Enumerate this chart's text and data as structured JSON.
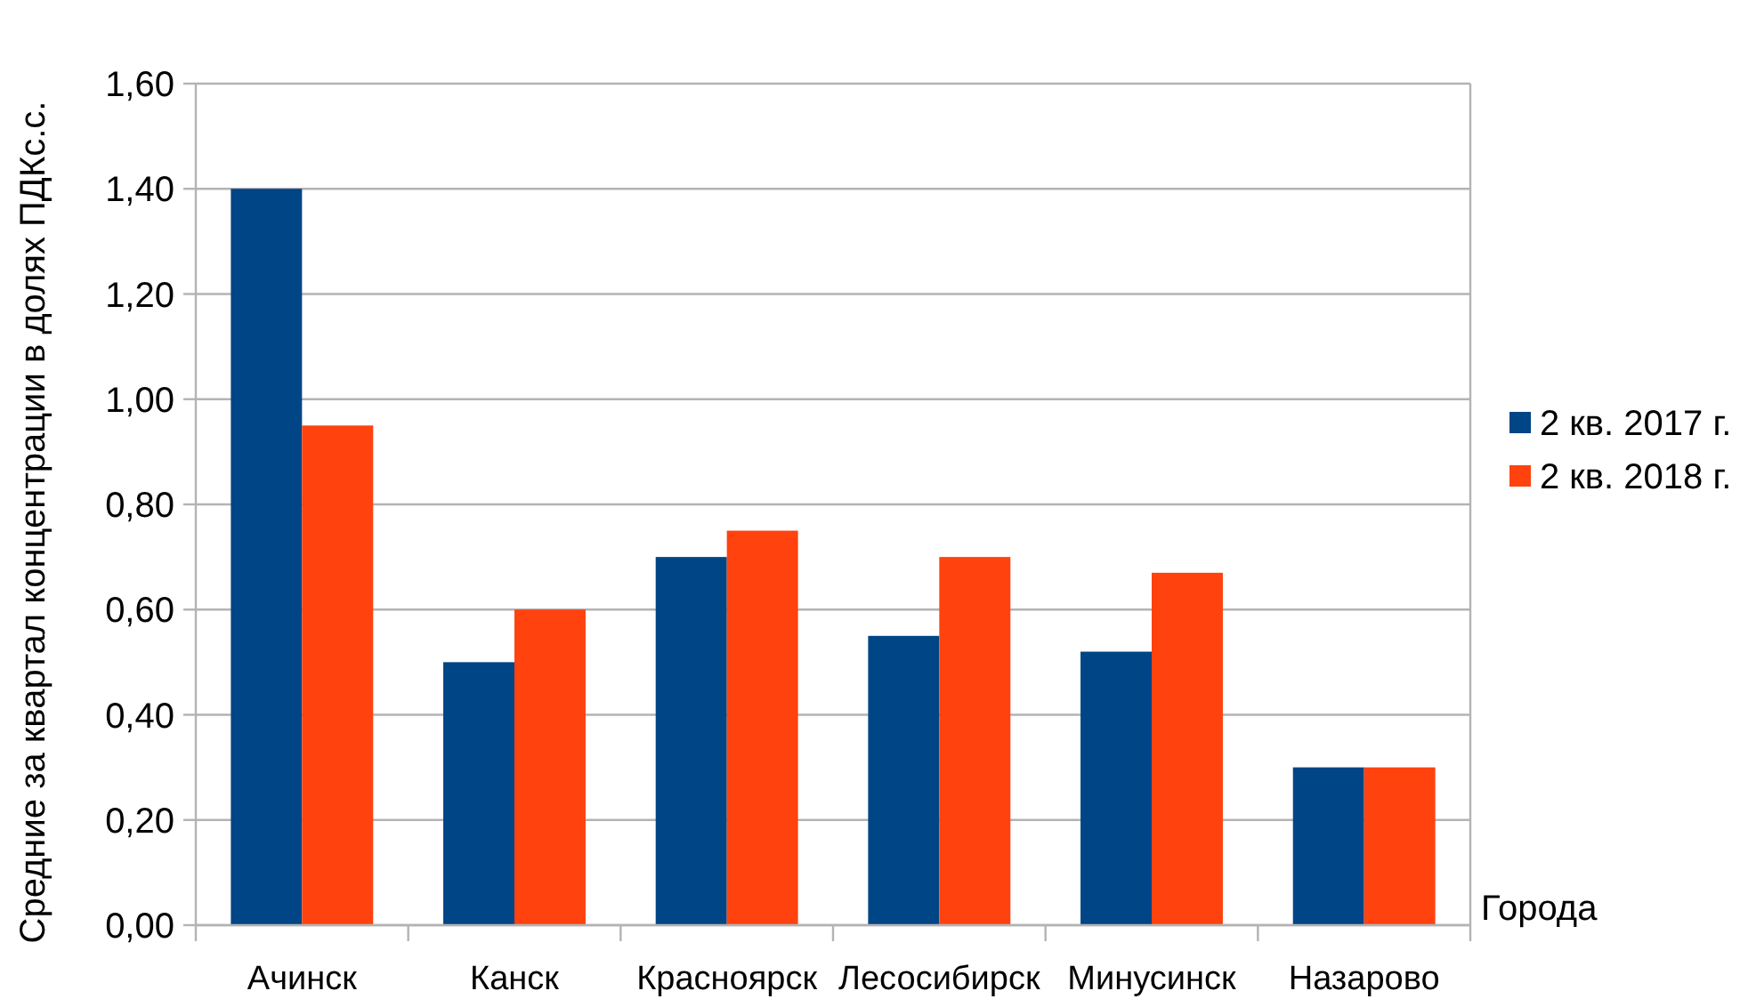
{
  "chart_data": {
    "type": "bar",
    "xlabel": "Города",
    "ylabel": "Средние за квартал концентрации в долях ПДКс.с.",
    "categories": [
      "Ачинск",
      "Канск",
      "Красноярск",
      "Лесосибирск",
      "Минусинск",
      "Назарово"
    ],
    "series": [
      {
        "name": "2 кв. 2017 г.",
        "color": "#004586",
        "values": [
          1.4,
          0.5,
          0.7,
          0.55,
          0.52,
          0.3
        ]
      },
      {
        "name": "2 кв. 2018 г.",
        "color": "#ff420e",
        "values": [
          0.95,
          0.6,
          0.75,
          0.7,
          0.67,
          0.3
        ]
      }
    ],
    "ylim": [
      0,
      1.6
    ],
    "yticks": [
      {
        "value": 0,
        "label": "0,00"
      },
      {
        "value": 0.2,
        "label": "0,20"
      },
      {
        "value": 0.4,
        "label": "0,40"
      },
      {
        "value": 0.6,
        "label": "0,60"
      },
      {
        "value": 0.8,
        "label": "0,80"
      },
      {
        "value": 1.0,
        "label": "1,00"
      },
      {
        "value": 1.2,
        "label": "1,20"
      },
      {
        "value": 1.4,
        "label": "1,40"
      },
      {
        "value": 1.6,
        "label": "1,60"
      }
    ],
    "grid": "y",
    "legend": "right"
  }
}
